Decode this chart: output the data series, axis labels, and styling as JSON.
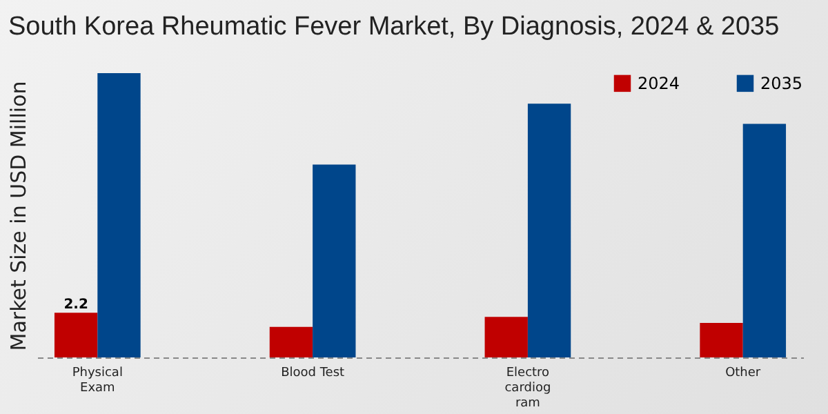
{
  "chart_data": {
    "type": "bar",
    "title": "South Korea Rheumatic Fever Market, By Diagnosis, 2024 & 2035",
    "ylabel": "Market Size in USD Million",
    "categories": [
      "Physical Exam",
      "Blood Test",
      "Electrocardiogram",
      "Other"
    ],
    "series": [
      {
        "name": "2024",
        "color": "#c00000",
        "values": [
          2.2,
          1.5,
          2.0,
          1.7
        ],
        "value_labels": [
          "2.2",
          null,
          null,
          null
        ]
      },
      {
        "name": "2035",
        "color": "#00468b",
        "values": [
          14.0,
          9.5,
          12.5,
          11.5
        ]
      }
    ],
    "legend": "top right",
    "grid": false
  }
}
